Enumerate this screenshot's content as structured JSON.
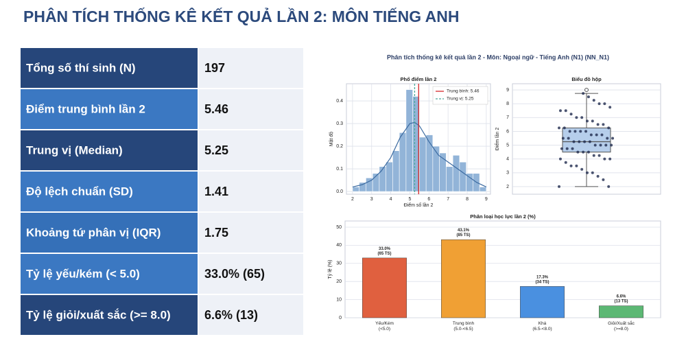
{
  "header": {
    "title": "PHÂN TÍCH THỐNG KÊ KẾT QUẢ LẦN 2: MÔN TIẾNG ANH"
  },
  "table": {
    "rows": [
      [
        "Tổng số thí sinh (N)",
        "197"
      ],
      [
        "Điểm trung bình lần 2",
        "5.46"
      ],
      [
        "Trung vị (Median)",
        "5.25"
      ],
      [
        "Độ lệch chuẩn (SD)",
        "1.41"
      ],
      [
        "Khoảng tứ phân vị (IQR)",
        "1.75"
      ],
      [
        "Tỷ lệ yếu/kém (< 5.0)",
        "33.0% (65)"
      ],
      [
        "Tỷ lệ giỏi/xuất sắc (>= 8.0)",
        "6.6% (13)"
      ]
    ]
  },
  "figure": {
    "title": "Phân tích thống kê kết quả lần 2 - Môn: Ngoại ngữ - Tiếng Anh (N1) (NN_N1)"
  },
  "chart_data": [
    {
      "type": "histogram",
      "title": "Phổ điểm lần 2",
      "x_label": "Điểm số lần 2",
      "y_label": "Mật độ",
      "bins": [
        2,
        2.35,
        2.7,
        3.05,
        3.4,
        3.75,
        4.1,
        4.45,
        4.8,
        5.15,
        5.5,
        5.85,
        6.2,
        6.55,
        6.9,
        7.25,
        7.6,
        7.95,
        8.3,
        8.65,
        9
      ],
      "values": [
        0.02,
        0.04,
        0.06,
        0.08,
        0.11,
        0.13,
        0.18,
        0.26,
        0.45,
        0.42,
        0.24,
        0.25,
        0.2,
        0.17,
        0.11,
        0.16,
        0.13,
        0.08,
        0.08,
        0.02
      ],
      "color": "#92b4d8",
      "kde": {
        "x": [
          2,
          2.5,
          3,
          3.5,
          4,
          4.5,
          5,
          5.25,
          5.5,
          6,
          6.5,
          7,
          7.5,
          8,
          8.5,
          9
        ],
        "values": [
          0.02,
          0.03,
          0.05,
          0.09,
          0.15,
          0.24,
          0.3,
          0.305,
          0.29,
          0.22,
          0.16,
          0.13,
          0.1,
          0.07,
          0.04,
          0.02
        ],
        "color": "#3b6aa0"
      },
      "reference_lines": [
        {
          "name": "Trung bình: 5.46",
          "value": 5.46,
          "color": "#d62728",
          "dashed": false
        },
        {
          "name": "Trung vị: 5.25",
          "value": 5.25,
          "color": "#4aa89a",
          "dashed": true
        }
      ],
      "legend": "upper right",
      "grid": true,
      "xlim": [
        1.68,
        9.22
      ],
      "xticks": [
        2,
        3,
        4,
        5,
        6,
        7,
        8,
        9
      ],
      "ylim": [
        -0.012,
        0.476
      ],
      "yticks": [
        {
          "value": 0,
          "label": "0.0"
        },
        0.1,
        0.2,
        0.3,
        0.4
      ]
    },
    {
      "type": "box",
      "title": "Biểu đồ hộp",
      "y_label": "Điểm lần 2",
      "color": "#a9c6e8",
      "point_color": "#1f2a4d",
      "box": {
        "q1": 4.5,
        "median": 5.25,
        "q3": 6.25,
        "whislo": 2,
        "whishi": 8.75,
        "fliers": [
          9
        ]
      },
      "points": [
        2,
        2,
        2.5,
        2.75,
        3,
        3,
        3.25,
        3.5,
        3.5,
        3.75,
        4,
        4,
        4,
        4.25,
        4.25,
        4.5,
        4.5,
        4.5,
        4.75,
        4.75,
        4.75,
        5,
        5,
        5,
        5,
        5.25,
        5.25,
        5.25,
        5.25,
        5.5,
        5.5,
        5.5,
        5.5,
        5.75,
        5.75,
        5.75,
        6,
        6,
        6,
        6,
        6.25,
        6.25,
        6.25,
        6.5,
        6.5,
        6.75,
        6.75,
        7,
        7,
        7.25,
        7.5,
        7.5,
        7.75,
        8,
        8,
        8.25,
        8.5,
        8.75
      ],
      "grid": true,
      "ylim": [
        1.45,
        9.45
      ],
      "yticks": [
        2,
        3,
        4,
        5,
        6,
        7,
        8,
        9
      ]
    },
    {
      "type": "bar",
      "title": "Phân loại học lực lần 2 (%)",
      "y_label": "Tỷ lệ (%)",
      "categories": [
        "Yếu/Kém\n(<5.0)",
        "Trung bình\n(5.0-<6.5)",
        "Khá\n(6.5-<8.0)",
        "Giỏi/Xuất sắc\n(>=8.0)"
      ],
      "values": [
        33.0,
        43.1,
        17.3,
        6.6
      ],
      "value_labels": [
        "33.0%\n(65 TS)",
        "43.1%\n(85 TS)",
        "17.3%\n(34 TS)",
        "6.6%\n(13 TS)"
      ],
      "colors": [
        "#e0603f",
        "#f0a034",
        "#4a90e0",
        "#5cb874"
      ],
      "grid": true,
      "ylim": [
        0,
        53.4
      ],
      "yticks": [
        0,
        10,
        20,
        30,
        40,
        50
      ]
    }
  ]
}
